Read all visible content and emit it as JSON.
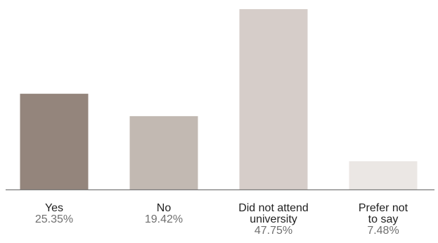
{
  "chart_data": {
    "type": "bar",
    "categories": [
      "Yes",
      "No",
      "Did not attend university",
      "Prefer not to say"
    ],
    "category_lines": [
      [
        "Yes"
      ],
      [
        "No"
      ],
      [
        "Did not attend",
        "university"
      ],
      [
        "Prefer not",
        "to say"
      ]
    ],
    "values": [
      25.35,
      19.42,
      47.75,
      7.48
    ],
    "value_labels": [
      "25.35%",
      "19.42%",
      "47.75%",
      "7.48%"
    ],
    "colors": [
      "#94857c",
      "#c2b9b2",
      "#d6cdc9",
      "#ebe7e4"
    ],
    "axis_color": "#7a7a7a",
    "title": "",
    "xlabel": "",
    "ylabel": "",
    "ylim": [
      0,
      47.75
    ],
    "grid": false,
    "legend": "none"
  }
}
